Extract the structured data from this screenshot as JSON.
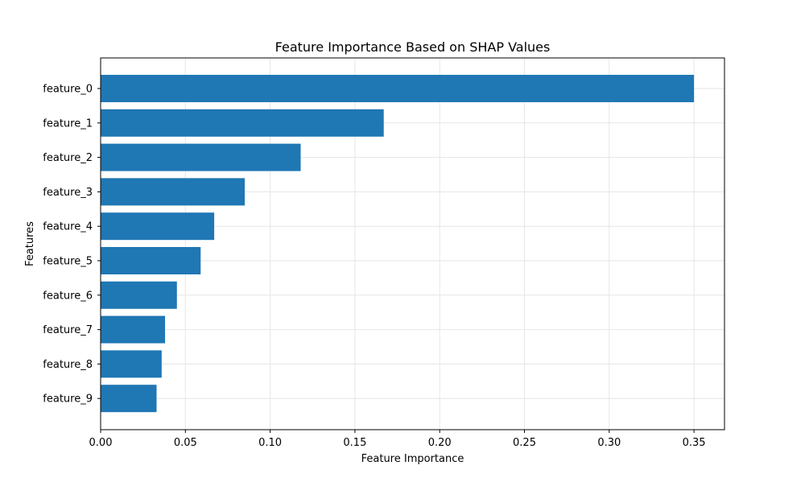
{
  "chart_data": {
    "type": "bar",
    "orientation": "horizontal",
    "title": "Feature Importance Based on SHAP Values",
    "xlabel": "Feature Importance",
    "ylabel": "Features",
    "categories": [
      "feature_0",
      "feature_1",
      "feature_2",
      "feature_3",
      "feature_4",
      "feature_5",
      "feature_6",
      "feature_7",
      "feature_8",
      "feature_9"
    ],
    "values": [
      0.35,
      0.167,
      0.118,
      0.085,
      0.067,
      0.059,
      0.045,
      0.038,
      0.036,
      0.033
    ],
    "xlim": [
      0,
      0.368
    ],
    "xticks": [
      0.0,
      0.05,
      0.1,
      0.15,
      0.2,
      0.25,
      0.3,
      0.35
    ],
    "xtick_labels": [
      "0.00",
      "0.05",
      "0.10",
      "0.15",
      "0.20",
      "0.25",
      "0.30",
      "0.35"
    ],
    "grid": true,
    "bar_color": "#1f77b4",
    "grid_color": "#e6e6e6"
  }
}
